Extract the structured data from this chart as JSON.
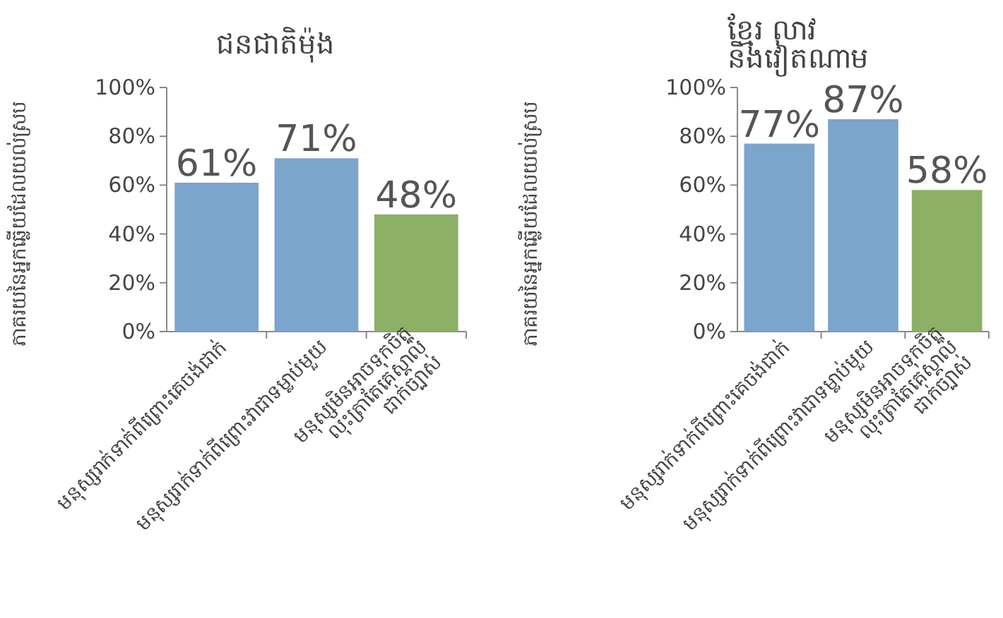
{
  "chart_data": [
    {
      "type": "bar",
      "title": "ជនជាតិម៉ុង",
      "ylabel": "ភាគរយនៃអ្នកឆ្លើយដែលយល់ស្រប",
      "categories": [
        "មនុស្សរាក់ទាក់ពីព្រោះគេចង់ជាក់",
        "មនុស្សរាក់ទាក់ពីព្រោះវាជាទម្លាប់មួយ",
        "មនុស្សមិនអាចទុកចិត្ត\nលុះត្រាតែគេស្គាល់\nជាក់ច្បាស់"
      ],
      "values": [
        61,
        71,
        48
      ],
      "colors": [
        "#7ba5cc",
        "#7ba5cc",
        "#8cb066"
      ],
      "ylim": [
        0,
        100
      ],
      "yticks": [
        {
          "value": 0,
          "label": "0%"
        },
        {
          "value": 20,
          "label": "20%"
        },
        {
          "value": 40,
          "label": "40%"
        },
        {
          "value": 60,
          "label": "60%"
        },
        {
          "value": 80,
          "label": "80%"
        },
        {
          "value": 100,
          "label": "100%"
        }
      ],
      "value_labels": [
        "61%",
        "71%",
        "48%"
      ]
    },
    {
      "type": "bar",
      "title": "ខ្មែរ  លាវ\nនិងវៀតណាម",
      "ylabel": "ភាគរយនៃអ្នកឆ្លើយដែលយល់ស្រប",
      "categories": [
        "មនុស្សរាក់ទាក់ពីព្រោះគេចង់ជាក់",
        "មនុស្សរាក់ទាក់ពីព្រោះវាជាទម្លាប់មួយ",
        "មនុស្សមិនអាចទុកចិត្ត\nលុះត្រាតែគេស្គាល់\nជាក់ច្បាស់"
      ],
      "values": [
        77,
        87,
        58
      ],
      "colors": [
        "#7ba5cc",
        "#7ba5cc",
        "#8cb066"
      ],
      "ylim": [
        0,
        100
      ],
      "yticks": [
        {
          "value": 0,
          "label": "0%"
        },
        {
          "value": 20,
          "label": "20%"
        },
        {
          "value": 40,
          "label": "40%"
        },
        {
          "value": 60,
          "label": "60%"
        },
        {
          "value": 80,
          "label": "80%"
        },
        {
          "value": 100,
          "label": "100%"
        }
      ],
      "value_labels": [
        "77%",
        "87%",
        "58%"
      ]
    }
  ]
}
